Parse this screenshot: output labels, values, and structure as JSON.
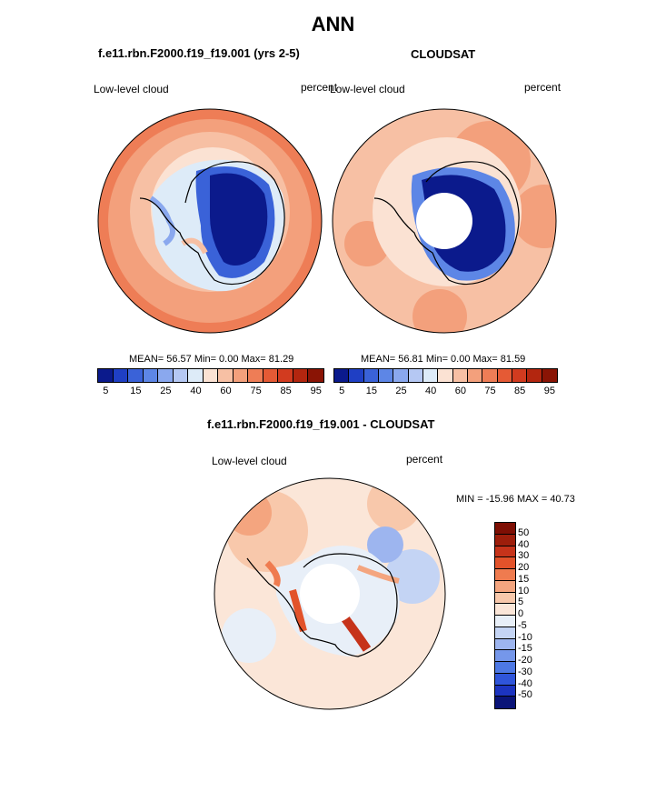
{
  "main_title": "ANN",
  "panels": [
    {
      "title": "f.e11.rbn.F2000.f19_f19.001 (yrs 2-5)",
      "left_label": "Low-level cloud",
      "right_label": "percent",
      "stats": "MEAN=  56.57  Min=   0.00  Max=  81.29"
    },
    {
      "title": "CLOUDSAT",
      "left_label": "Low-level cloud",
      "right_label": "percent",
      "stats": "MEAN=  56.81  Min=   0.00  Max=  81.59"
    }
  ],
  "diff_panel": {
    "title": "f.e11.rbn.F2000.f19_f19.001 - CLOUDSAT",
    "left_label": "Low-level cloud",
    "right_label": "percent",
    "minmax": "MIN = -15.96 MAX =  40.73"
  },
  "colorbar_abs": {
    "colors": [
      "#0b1a8c",
      "#1f3fc4",
      "#3a62d8",
      "#5d86e6",
      "#8aa8ee",
      "#b5c8f3",
      "#ddebf8",
      "#fbe2d3",
      "#f7c0a4",
      "#f3a07c",
      "#ee7d56",
      "#e55a35",
      "#d23b1f",
      "#b3260f",
      "#8a1405"
    ],
    "ticks": [
      "5",
      "15",
      "25",
      "40",
      "60",
      "75",
      "85",
      "95"
    ]
  },
  "colorbar_diff": {
    "colors": [
      "#0a1478",
      "#1c34c0",
      "#2f55da",
      "#4d78e4",
      "#7597ea",
      "#9db5ef",
      "#c4d4f4",
      "#e8eff8",
      "#fbe6d8",
      "#f8c8ab",
      "#f4a57f",
      "#ef7b4f",
      "#e2522a",
      "#c6331a",
      "#9d1e0b",
      "#7e0f04"
    ],
    "ticks": [
      "50",
      "40",
      "30",
      "20",
      "15",
      "10",
      "5",
      "0",
      "-5",
      "-10",
      "-15",
      "-20",
      "-30",
      "-40",
      "-50"
    ]
  },
  "chart_data": [
    {
      "type": "heatmap",
      "title": "f.e11.rbn.F2000.f19_f19.001 (yrs 2-5)",
      "variable": "Low-level cloud",
      "units": "percent",
      "projection": "south polar stereographic",
      "mean": 56.57,
      "min": 0.0,
      "max": 81.29,
      "levels": [
        5,
        10,
        15,
        20,
        25,
        30,
        40,
        50,
        60,
        70,
        75,
        80,
        85,
        90,
        95
      ]
    },
    {
      "type": "heatmap",
      "title": "CLOUDSAT",
      "variable": "Low-level cloud",
      "units": "percent",
      "projection": "south polar stereographic",
      "mean": 56.81,
      "min": 0.0,
      "max": 81.59,
      "levels": [
        5,
        10,
        15,
        20,
        25,
        30,
        40,
        50,
        60,
        70,
        75,
        80,
        85,
        90,
        95
      ]
    },
    {
      "type": "heatmap",
      "title": "f.e11.rbn.F2000.f19_f19.001 - CLOUDSAT",
      "variable": "Low-level cloud",
      "units": "percent",
      "projection": "south polar stereographic",
      "min": -15.96,
      "max": 40.73,
      "levels": [
        -50,
        -40,
        -30,
        -20,
        -15,
        -10,
        -5,
        0,
        5,
        10,
        15,
        20,
        30,
        40,
        50
      ]
    }
  ]
}
